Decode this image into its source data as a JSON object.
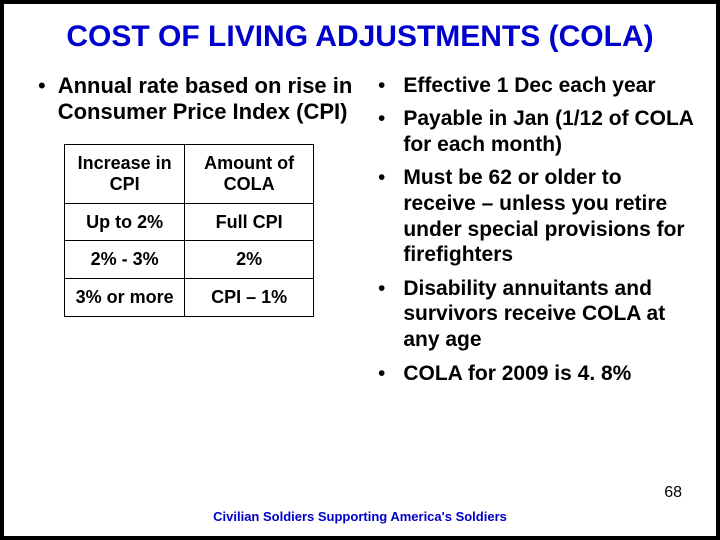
{
  "colors": {
    "title": "#0000cc",
    "footer": "#0000cc",
    "text": "#000000",
    "border": "#000000",
    "background": "#ffffff"
  },
  "typography": {
    "title_fontsize": 30,
    "bullet_fontsize": 22,
    "right_bullet_fontsize": 21,
    "table_fontsize": 18,
    "footer_fontsize": 13,
    "pagenum_fontsize": 16,
    "font_family": "Arial"
  },
  "title": "COST OF LIVING ADJUSTMENTS (COLA)",
  "left": {
    "bullet": "Annual rate based on rise in Consumer Price Index (CPI)"
  },
  "table": {
    "type": "table",
    "columns": [
      "Increase in CPI",
      "Amount of COLA"
    ],
    "rows": [
      [
        "Up to 2%",
        "Full CPI"
      ],
      [
        "2% - 3%",
        "2%"
      ],
      [
        "3% or more",
        "CPI – 1%"
      ]
    ],
    "column_widths": [
      0.5,
      0.5
    ],
    "alignment": "center"
  },
  "right": {
    "bullets": [
      "Effective 1 Dec each year",
      "Payable in Jan (1/12 of COLA for each month)",
      "Must be 62 or older to receive – unless you retire under special provisions for firefighters",
      "Disability annuitants and survivors receive COLA at any age",
      "COLA for 2009 is 4. 8%"
    ]
  },
  "footer": "Civilian Soldiers Supporting America's Soldiers",
  "page_number": "68"
}
